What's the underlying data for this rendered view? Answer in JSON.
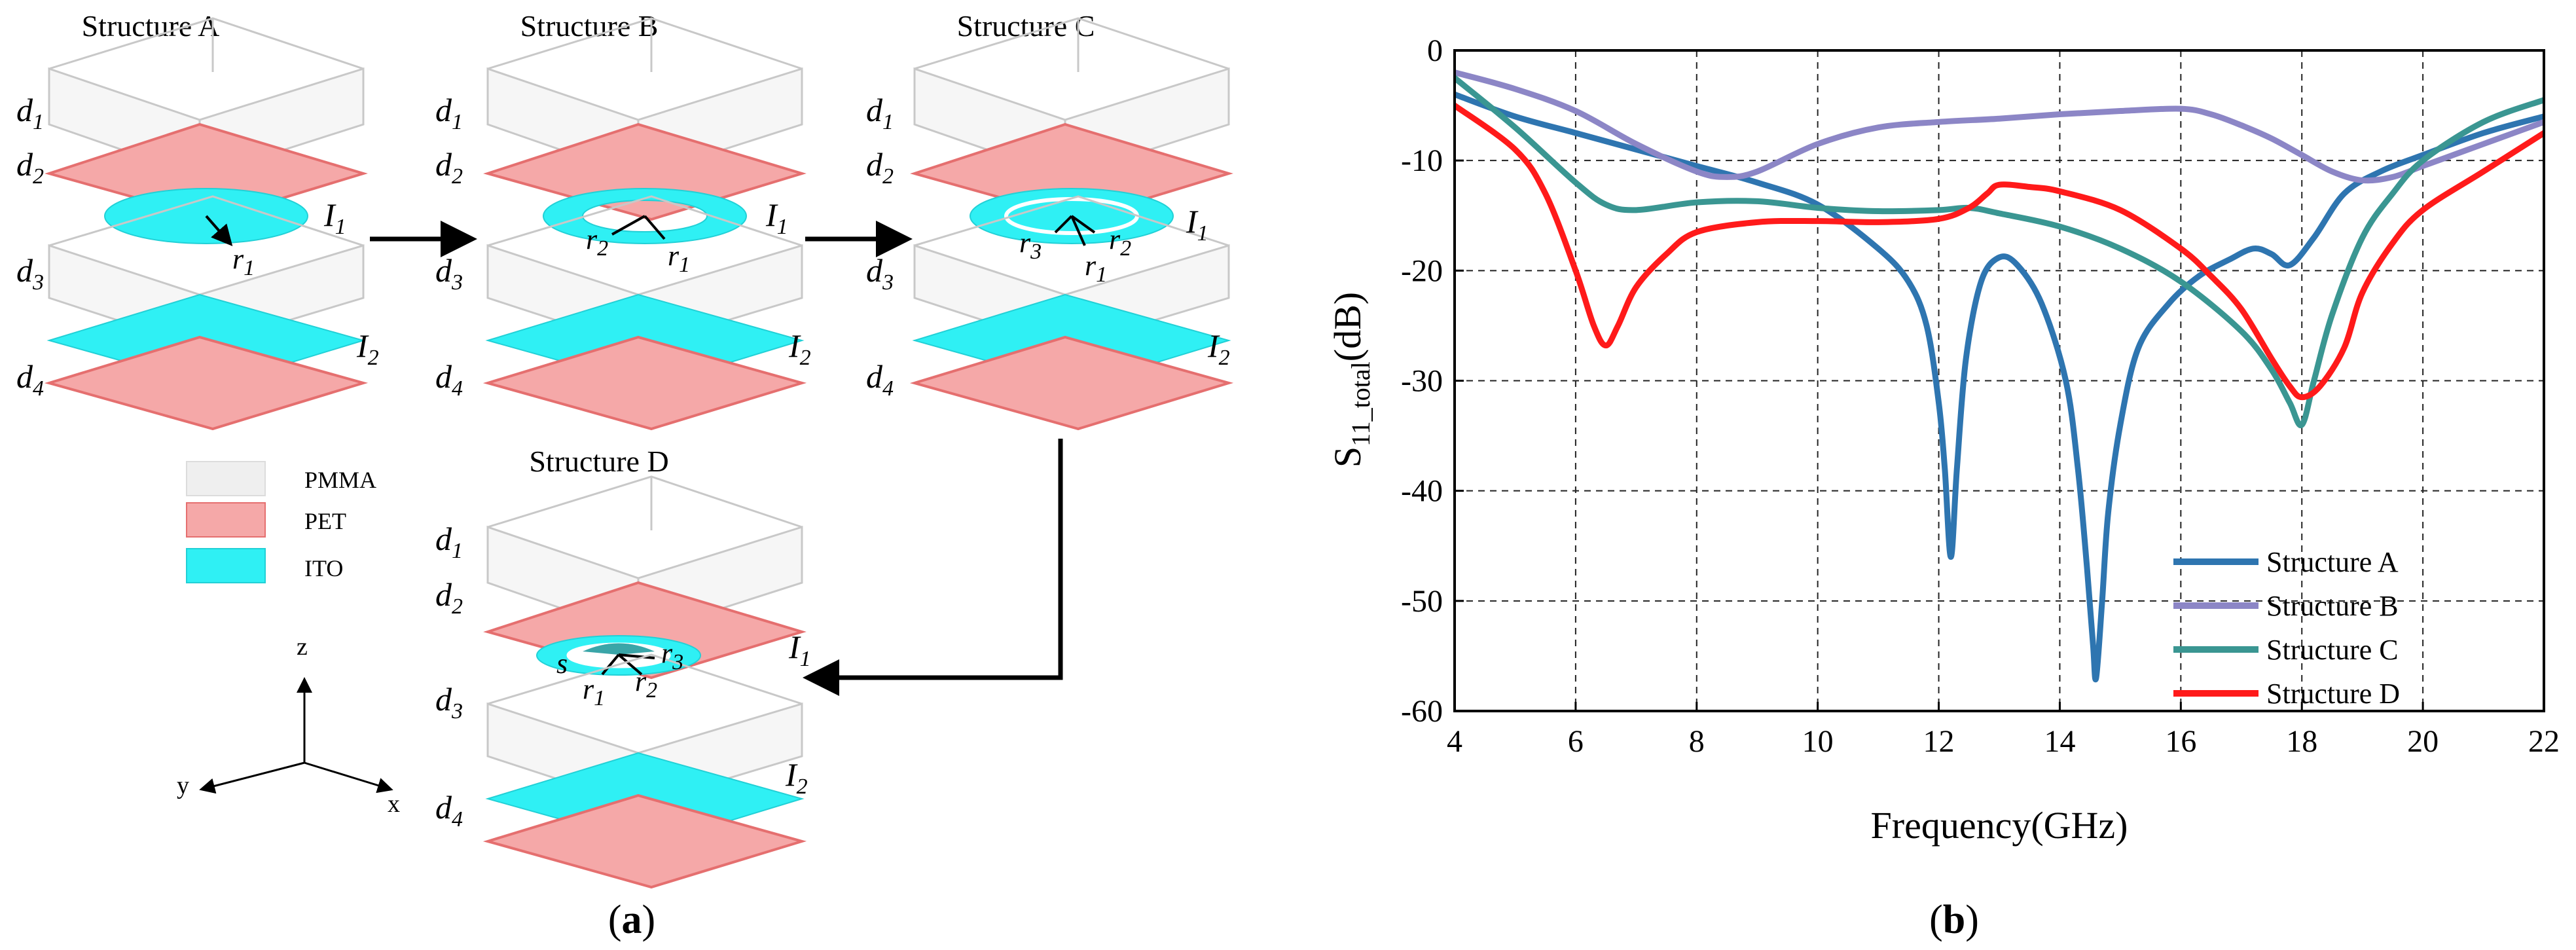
{
  "diagram": {
    "structures": [
      {
        "title": "Structure A",
        "layers": [
          "d",
          "1",
          "d",
          "2",
          "d",
          "3",
          "d",
          "4"
        ],
        "radii": [
          "r",
          "1"
        ]
      },
      {
        "title": "Structure B",
        "radii": [
          "r",
          "2",
          "r",
          "1"
        ]
      },
      {
        "title": "Structure C",
        "radii": [
          "r",
          "3",
          "r",
          "2",
          "r",
          "1"
        ]
      },
      {
        "title": "Structure D",
        "radii": [
          "r",
          "3",
          "r",
          "1",
          "r",
          "2"
        ],
        "gap_label": "s"
      }
    ],
    "layer_names": {
      "d1": "d",
      "d2": "d",
      "d3": "d",
      "d4": "d",
      "s1": "1",
      "s2": "2",
      "s3": "3",
      "s4": "4"
    },
    "ito_labels": {
      "I": "I",
      "s1": "1",
      "s2": "2"
    },
    "legend": [
      {
        "label": "PMMA",
        "color": "#efefef"
      },
      {
        "label": "PET",
        "color": "#f5a8a8"
      },
      {
        "label": "ITO",
        "color": "#2ff0f4"
      }
    ],
    "axes": {
      "z": "z",
      "y": "y",
      "x": "x"
    },
    "panel_label": {
      "open": "(",
      "letter": "a",
      "close": ")"
    }
  },
  "chart_data": {
    "type": "line",
    "title": "",
    "xlabel": "Frequency(GHz)",
    "ylabel_main": "S",
    "ylabel_sub": "11_total",
    "ylabel_unit": "(dB)",
    "xlim": [
      4,
      22
    ],
    "ylim": [
      -60,
      0
    ],
    "xticks": [
      4,
      6,
      8,
      10,
      12,
      14,
      16,
      18,
      20,
      22
    ],
    "yticks": [
      0,
      -10,
      -20,
      -30,
      -40,
      -50,
      -60
    ],
    "grid": true,
    "legend_position": "bottom-right",
    "series": [
      {
        "name": "Structure A",
        "color": "#2e75b0",
        "x": [
          4,
          5,
          6,
          7,
          8,
          9,
          10,
          11,
          11.5,
          11.8,
          12.0,
          12.1,
          12.2,
          12.3,
          12.45,
          12.7,
          13.0,
          13.3,
          13.7,
          14.1,
          14.3,
          14.45,
          14.55,
          14.6,
          14.7,
          14.8,
          15.0,
          15.3,
          15.8,
          16.3,
          16.8,
          17.2,
          17.5,
          17.8,
          18.2,
          18.7,
          19.3,
          20,
          21,
          22
        ],
        "y": [
          -4,
          -6,
          -7.5,
          -9,
          -10.5,
          -12,
          -14,
          -18,
          -21,
          -25,
          -32,
          -38,
          -46,
          -38,
          -28,
          -21,
          -18.8,
          -19.5,
          -23,
          -30,
          -38,
          -47,
          -54,
          -57,
          -50,
          -42,
          -34,
          -27,
          -23,
          -20.5,
          -19,
          -18,
          -18.5,
          -19.5,
          -17,
          -13,
          -11,
          -9.5,
          -7.5,
          -6
        ]
      },
      {
        "name": "Structure B",
        "color": "#8c86c6",
        "x": [
          4,
          5,
          6,
          7,
          8,
          8.5,
          9,
          10,
          11,
          12,
          13,
          14,
          15,
          16,
          16.5,
          17,
          17.5,
          18,
          18.5,
          19,
          19.5,
          20,
          20.5,
          21,
          22
        ],
        "y": [
          -2,
          -3.5,
          -5.5,
          -8.5,
          -11,
          -11.5,
          -11,
          -8.5,
          -7,
          -6.5,
          -6.2,
          -5.8,
          -5.5,
          -5.3,
          -5.8,
          -6.8,
          -8,
          -9.5,
          -11,
          -11.8,
          -11.5,
          -10.5,
          -9.5,
          -8.5,
          -6.5
        ]
      },
      {
        "name": "Structure C",
        "color": "#3a9692",
        "x": [
          4,
          5,
          6,
          6.5,
          7,
          8,
          9,
          10,
          11,
          12,
          12.5,
          13,
          14,
          15,
          16,
          17,
          17.5,
          17.8,
          18.0,
          18.2,
          18.5,
          19,
          19.5,
          20,
          21,
          22
        ],
        "y": [
          -2.5,
          -7,
          -12,
          -14,
          -14.5,
          -13.8,
          -13.7,
          -14.3,
          -14.6,
          -14.5,
          -14.3,
          -14.8,
          -16,
          -18,
          -21,
          -25.5,
          -29,
          -32,
          -34,
          -30,
          -24,
          -17,
          -13,
          -10,
          -6.5,
          -4.5
        ]
      },
      {
        "name": "Structure D",
        "color": "#ff1a1a",
        "x": [
          4,
          5,
          5.5,
          6,
          6.3,
          6.5,
          6.7,
          7,
          7.5,
          8,
          9,
          10,
          11,
          12,
          12.5,
          12.8,
          13.0,
          13.5,
          14,
          15,
          16,
          16.5,
          17,
          17.5,
          17.8,
          18.0,
          18.3,
          18.7,
          19,
          19.5,
          20,
          21,
          22
        ],
        "y": [
          -5,
          -9,
          -13,
          -20,
          -25,
          -26.8,
          -25,
          -21.5,
          -18.5,
          -16.5,
          -15.6,
          -15.5,
          -15.6,
          -15.3,
          -14.3,
          -13,
          -12.2,
          -12.4,
          -12.8,
          -14.5,
          -18,
          -20.5,
          -23.5,
          -28,
          -30.5,
          -31.5,
          -30.5,
          -27,
          -22,
          -17.5,
          -14.5,
          -11,
          -7.5
        ]
      }
    ],
    "panel_label": {
      "open": "(",
      "letter": "b",
      "close": ")"
    }
  }
}
